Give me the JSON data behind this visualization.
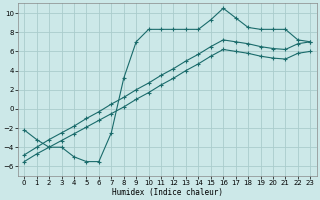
{
  "bg_color": "#cce8e8",
  "grid_color": "#aacccc",
  "line_color": "#1a6b6b",
  "xlabel": "Humidex (Indice chaleur)",
  "xlim": [
    -0.5,
    23.5
  ],
  "ylim": [
    -7,
    11
  ],
  "yticks": [
    -6,
    -4,
    -2,
    0,
    2,
    4,
    6,
    8,
    10
  ],
  "xticks": [
    0,
    1,
    2,
    3,
    4,
    5,
    6,
    7,
    8,
    9,
    10,
    11,
    12,
    13,
    14,
    15,
    16,
    17,
    18,
    19,
    20,
    21,
    22,
    23
  ],
  "curve1_x": [
    0,
    1,
    2,
    3,
    4,
    5,
    6,
    7,
    8,
    9,
    10,
    11,
    12,
    13,
    14,
    15,
    16,
    17,
    18,
    19,
    20,
    21,
    22,
    23
  ],
  "curve1_y": [
    -2.2,
    -3.2,
    -4.0,
    -4.0,
    -5.0,
    -5.5,
    -5.5,
    -2.5,
    3.2,
    7.0,
    8.3,
    8.3,
    8.3,
    8.3,
    8.3,
    9.3,
    10.5,
    9.5,
    8.5,
    8.3,
    8.3,
    8.3,
    7.2,
    7.0
  ],
  "curve2_x": [
    0,
    1,
    2,
    3,
    4,
    5,
    6,
    7,
    8,
    9,
    10,
    11,
    12,
    13,
    14,
    15,
    16,
    17,
    18,
    19,
    20,
    21,
    22,
    23
  ],
  "curve2_y": [
    -4.8,
    -4.0,
    -3.2,
    -2.5,
    -1.8,
    -1.0,
    -0.3,
    0.5,
    1.2,
    2.0,
    2.7,
    3.5,
    4.2,
    5.0,
    5.7,
    6.5,
    7.2,
    7.0,
    6.8,
    6.5,
    6.3,
    6.2,
    6.8,
    7.0
  ],
  "curve3_x": [
    0,
    1,
    2,
    3,
    4,
    5,
    6,
    7,
    8,
    9,
    10,
    11,
    12,
    13,
    14,
    15,
    16,
    17,
    18,
    19,
    20,
    21,
    22,
    23
  ],
  "curve3_y": [
    -5.5,
    -4.7,
    -4.0,
    -3.3,
    -2.6,
    -1.9,
    -1.2,
    -0.5,
    0.2,
    1.0,
    1.7,
    2.5,
    3.2,
    4.0,
    4.7,
    5.5,
    6.2,
    6.0,
    5.8,
    5.5,
    5.3,
    5.2,
    5.8,
    6.0
  ]
}
